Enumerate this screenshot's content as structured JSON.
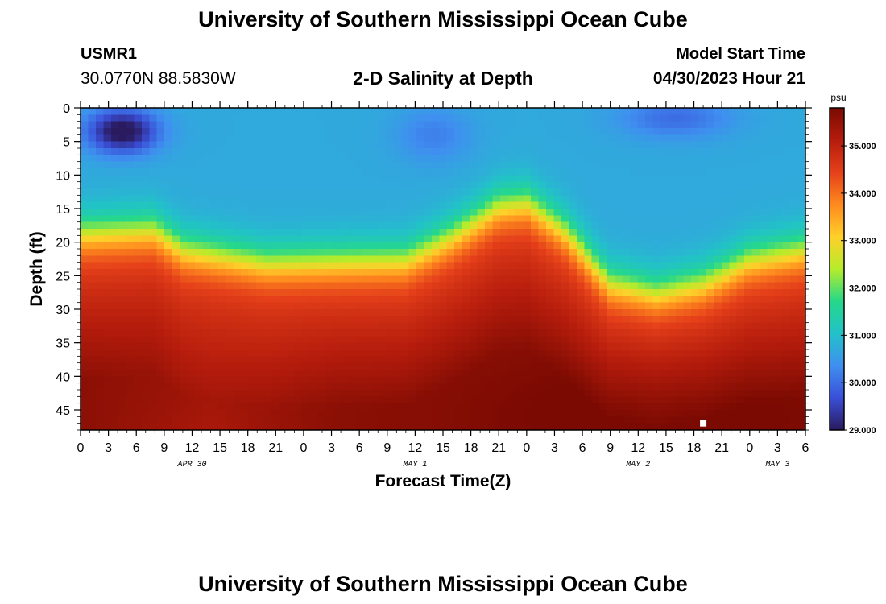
{
  "header": {
    "title": "University of Southern Mississippi Ocean Cube",
    "station_id": "USMR1",
    "coords": "30.0770N  88.5830W",
    "plot_title": "2-D Salinity at Depth",
    "model_start_label": "Model Start Time",
    "model_start_value": "04/30/2023 Hour 21",
    "footer_title": "University of Southern Mississippi Ocean Cube"
  },
  "chart_data": {
    "type": "heatmap",
    "title": "2-D Salinity at Depth",
    "xlabel": "Forecast Time(Z)",
    "ylabel": "Depth (ft)",
    "x_hours_range": [
      0,
      78
    ],
    "ylim": [
      0,
      48
    ],
    "x_tick_labels": [
      "0",
      "3",
      "6",
      "9",
      "12",
      "15",
      "18",
      "21",
      "0",
      "3",
      "6",
      "9",
      "12",
      "15",
      "18",
      "21",
      "0",
      "3",
      "6",
      "9",
      "12",
      "15",
      "18",
      "21",
      "0",
      "3",
      "6"
    ],
    "y_ticks": [
      0,
      5,
      10,
      15,
      20,
      25,
      30,
      35,
      40,
      45
    ],
    "date_labels": [
      {
        "hour": 12,
        "label": "APR 30"
      },
      {
        "hour": 36,
        "label": "MAY 1"
      },
      {
        "hour": 60,
        "label": "MAY 2"
      },
      {
        "hour": 75,
        "label": "MAY 3"
      }
    ],
    "colorbar": {
      "unit": "psu",
      "min": 29.0,
      "max": 35.8,
      "ticks": [
        "29.000",
        "30.000",
        "31.000",
        "32.000",
        "33.000",
        "34.000",
        "35.000"
      ],
      "colors": [
        "#2a1a5e",
        "#3a4fd8",
        "#3f8ff0",
        "#22c2c8",
        "#25d88a",
        "#b6ec2a",
        "#ffd02a",
        "#ff8a1e",
        "#e5401a",
        "#b51c0c",
        "#7a0a02"
      ]
    },
    "halocline_depth_ft": [
      {
        "hour": 0,
        "depth": 18.5
      },
      {
        "hour": 8,
        "depth": 18.0
      },
      {
        "hour": 11,
        "depth": 21.0
      },
      {
        "hour": 20,
        "depth": 23.0
      },
      {
        "hour": 35,
        "depth": 22.5
      },
      {
        "hour": 40,
        "depth": 19.0
      },
      {
        "hour": 45,
        "depth": 14.5
      },
      {
        "hour": 48,
        "depth": 14.0
      },
      {
        "hour": 52,
        "depth": 18.0
      },
      {
        "hour": 57,
        "depth": 26.0
      },
      {
        "hour": 62,
        "depth": 27.5
      },
      {
        "hour": 67,
        "depth": 26.0
      },
      {
        "hour": 72,
        "depth": 22.5
      },
      {
        "hour": 78,
        "depth": 21.0
      }
    ],
    "surface_min": {
      "hour": 4.5,
      "depth": 3.5,
      "value": 29.0
    },
    "bottom_max": {
      "hour": 62,
      "depth": 46,
      "value": 35.8
    },
    "marker": {
      "hour": 67,
      "depth": 47
    }
  }
}
